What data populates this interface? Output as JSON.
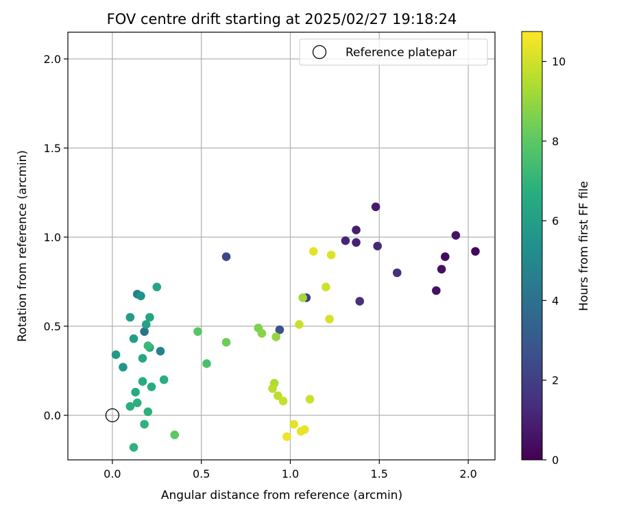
{
  "chart_data": {
    "type": "scatter",
    "title": "FOV centre drift starting at 2025/02/27 19:18:24",
    "xlabel": "Angular distance from reference (arcmin)",
    "ylabel": "Rotation from reference (arcmin)",
    "xlim": [
      -0.25,
      2.15
    ],
    "ylim": [
      -0.25,
      2.15
    ],
    "xticks": [
      0.0,
      0.5,
      1.0,
      1.5,
      2.0
    ],
    "yticks": [
      0.0,
      0.5,
      1.0,
      1.5,
      2.0
    ],
    "xtick_labels": [
      "0.0",
      "0.5",
      "1.0",
      "1.5",
      "2.0"
    ],
    "ytick_labels": [
      "0.0",
      "0.5",
      "1.0",
      "1.5",
      "2.0"
    ],
    "grid": true,
    "legend_position": "top-right",
    "legend": [
      {
        "label": "Reference platepar",
        "marker": "open-circle",
        "x": 0.0,
        "y": 0.0
      }
    ],
    "colorbar": {
      "label": "Hours from first FF file",
      "min": 0,
      "max": 10.75,
      "ticks": [
        0,
        2,
        4,
        6,
        8,
        10
      ],
      "colormap": "viridis"
    },
    "points": [
      {
        "x": 2.04,
        "y": 0.92,
        "hours": 0.2
      },
      {
        "x": 1.87,
        "y": 0.89,
        "hours": 0.3
      },
      {
        "x": 1.85,
        "y": 0.82,
        "hours": 0.4
      },
      {
        "x": 1.82,
        "y": 0.7,
        "hours": 0.5
      },
      {
        "x": 1.93,
        "y": 1.01,
        "hours": 0.6
      },
      {
        "x": 1.48,
        "y": 1.17,
        "hours": 0.8
      },
      {
        "x": 1.37,
        "y": 1.04,
        "hours": 0.9
      },
      {
        "x": 1.37,
        "y": 0.97,
        "hours": 1.0
      },
      {
        "x": 1.31,
        "y": 0.98,
        "hours": 1.1
      },
      {
        "x": 1.49,
        "y": 0.95,
        "hours": 1.2
      },
      {
        "x": 1.6,
        "y": 0.8,
        "hours": 1.4
      },
      {
        "x": 1.39,
        "y": 0.64,
        "hours": 1.5
      },
      {
        "x": 1.09,
        "y": 0.66,
        "hours": 1.9
      },
      {
        "x": 0.64,
        "y": 0.89,
        "hours": 2.3
      },
      {
        "x": 0.94,
        "y": 0.48,
        "hours": 2.7
      },
      {
        "x": 0.18,
        "y": 0.47,
        "hours": 4.0
      },
      {
        "x": 0.14,
        "y": 0.68,
        "hours": 4.5
      },
      {
        "x": 0.27,
        "y": 0.36,
        "hours": 4.7
      },
      {
        "x": 0.16,
        "y": 0.67,
        "hours": 5.4
      },
      {
        "x": 0.06,
        "y": 0.27,
        "hours": 5.6
      },
      {
        "x": 0.02,
        "y": 0.34,
        "hours": 5.8
      },
      {
        "x": 0.1,
        "y": 0.55,
        "hours": 5.9
      },
      {
        "x": 0.12,
        "y": 0.43,
        "hours": 6.0
      },
      {
        "x": 0.19,
        "y": 0.51,
        "hours": 6.1
      },
      {
        "x": 0.21,
        "y": 0.55,
        "hours": 6.2
      },
      {
        "x": 0.25,
        "y": 0.72,
        "hours": 6.3
      },
      {
        "x": 0.17,
        "y": 0.32,
        "hours": 6.4
      },
      {
        "x": 0.21,
        "y": 0.38,
        "hours": 6.5
      },
      {
        "x": 0.13,
        "y": 0.13,
        "hours": 6.5
      },
      {
        "x": 0.17,
        "y": 0.19,
        "hours": 6.6
      },
      {
        "x": 0.22,
        "y": 0.16,
        "hours": 6.6
      },
      {
        "x": 0.29,
        "y": 0.2,
        "hours": 6.7
      },
      {
        "x": 0.1,
        "y": 0.05,
        "hours": 6.7
      },
      {
        "x": 0.14,
        "y": 0.07,
        "hours": 6.8
      },
      {
        "x": 0.2,
        "y": 0.02,
        "hours": 6.8
      },
      {
        "x": 0.18,
        "y": -0.05,
        "hours": 6.9
      },
      {
        "x": 0.12,
        "y": -0.18,
        "hours": 6.9
      },
      {
        "x": 0.2,
        "y": 0.39,
        "hours": 7.2
      },
      {
        "x": 0.53,
        "y": 0.29,
        "hours": 7.6
      },
      {
        "x": 0.48,
        "y": 0.47,
        "hours": 7.9
      },
      {
        "x": 0.35,
        "y": -0.11,
        "hours": 8.0
      },
      {
        "x": 0.64,
        "y": 0.41,
        "hours": 8.3
      },
      {
        "x": 0.82,
        "y": 0.49,
        "hours": 8.6
      },
      {
        "x": 0.84,
        "y": 0.46,
        "hours": 8.8
      },
      {
        "x": 0.92,
        "y": 0.44,
        "hours": 9.0
      },
      {
        "x": 1.07,
        "y": 0.66,
        "hours": 9.2
      },
      {
        "x": 0.91,
        "y": 0.18,
        "hours": 9.4
      },
      {
        "x": 0.9,
        "y": 0.15,
        "hours": 9.6
      },
      {
        "x": 0.93,
        "y": 0.11,
        "hours": 9.7
      },
      {
        "x": 0.96,
        "y": 0.08,
        "hours": 9.8
      },
      {
        "x": 1.05,
        "y": 0.51,
        "hours": 9.9
      },
      {
        "x": 1.11,
        "y": 0.09,
        "hours": 9.9
      },
      {
        "x": 1.2,
        "y": 0.72,
        "hours": 10.0
      },
      {
        "x": 1.22,
        "y": 0.54,
        "hours": 10.1
      },
      {
        "x": 1.23,
        "y": 0.9,
        "hours": 10.2
      },
      {
        "x": 1.13,
        "y": 0.92,
        "hours": 10.3
      },
      {
        "x": 1.02,
        "y": -0.05,
        "hours": 10.3
      },
      {
        "x": 1.06,
        "y": -0.09,
        "hours": 10.4
      },
      {
        "x": 1.08,
        "y": -0.08,
        "hours": 10.4
      },
      {
        "x": 0.98,
        "y": -0.12,
        "hours": 10.5
      }
    ]
  }
}
